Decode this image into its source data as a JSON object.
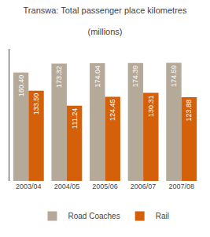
{
  "chart_data": {
    "type": "bar",
    "title": "Transwa: Total passenger place kilometres",
    "subtitle": "(millions)",
    "categories": [
      "2003/04",
      "2004/05",
      "2005/06",
      "2006/07",
      "2007/08"
    ],
    "series": [
      {
        "name": "Road Coaches",
        "color": "#b5aa9a",
        "values": [
          160.4,
          173.32,
          174.04,
          174.39,
          174.59
        ],
        "value_labels": [
          "160.40",
          "173.32",
          "174.04",
          "174.39",
          "174.59"
        ]
      },
      {
        "name": "Rail",
        "color": "#d4610a",
        "values": [
          133.5,
          111.24,
          124.45,
          130.31,
          123.88
        ],
        "value_labels": [
          "133.50",
          "111.24",
          "124.45",
          "130.31",
          "123.88"
        ]
      }
    ],
    "ylim": [
      0,
      195
    ],
    "grid": false,
    "legend": "bottom",
    "data_labels": true,
    "tick_labels": "x"
  }
}
